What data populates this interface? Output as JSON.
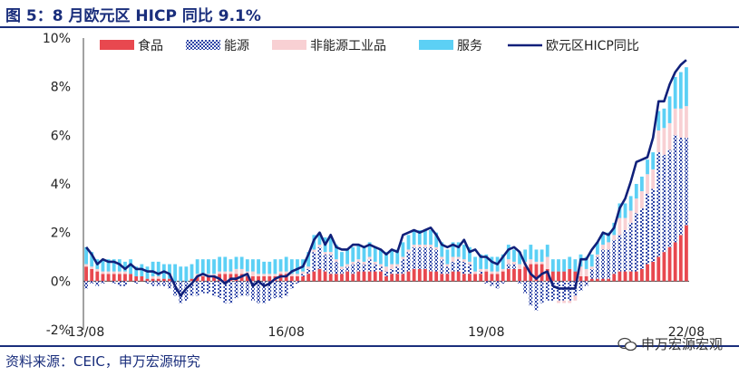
{
  "header": {
    "title": "图 5：8 月欧元区 HICP 同比 9.1%"
  },
  "footer": {
    "source": "资料来源：CEIC，申万宏源研究",
    "watermark": "申万宏源宏观"
  },
  "colors": {
    "food": "#e8484f",
    "energy": "#2d44a6",
    "nonenergy": "#f8d0d3",
    "services": "#5cd0f5",
    "hicp": "#10207a",
    "title": "#1a2e7c"
  },
  "chart_data": {
    "type": "bar",
    "stacked": true,
    "ylim": [
      -2,
      10
    ],
    "yticks": [
      "10%",
      "8%",
      "6%",
      "4%",
      "2%",
      "0%",
      "-2%"
    ],
    "ytick_values": [
      10,
      8,
      6,
      4,
      2,
      0,
      -2
    ],
    "xtick_labels": [
      "13/08",
      "16/08",
      "19/08",
      "22/08"
    ],
    "xtick_index": [
      0,
      36,
      72,
      108
    ],
    "legend": [
      "食品",
      "能源",
      "非能源工业品",
      "服务",
      "欧元区HICP同比"
    ],
    "x": [
      "13/08",
      "13/09",
      "13/10",
      "13/11",
      "13/12",
      "14/01",
      "14/02",
      "14/03",
      "14/04",
      "14/05",
      "14/06",
      "14/07",
      "14/08",
      "14/09",
      "14/10",
      "14/11",
      "14/12",
      "15/01",
      "15/02",
      "15/03",
      "15/04",
      "15/05",
      "15/06",
      "15/07",
      "15/08",
      "15/09",
      "15/10",
      "15/11",
      "15/12",
      "16/01",
      "16/02",
      "16/03",
      "16/04",
      "16/05",
      "16/06",
      "16/07",
      "16/08",
      "16/09",
      "16/10",
      "16/11",
      "16/12",
      "17/01",
      "17/02",
      "17/03",
      "17/04",
      "17/05",
      "17/06",
      "17/07",
      "17/08",
      "17/09",
      "17/10",
      "17/11",
      "17/12",
      "18/01",
      "18/02",
      "18/03",
      "18/04",
      "18/05",
      "18/06",
      "18/07",
      "18/08",
      "18/09",
      "18/10",
      "18/11",
      "18/12",
      "19/01",
      "19/02",
      "19/03",
      "19/04",
      "19/05",
      "19/06",
      "19/07",
      "19/08",
      "19/09",
      "19/10",
      "19/11",
      "19/12",
      "20/01",
      "20/02",
      "20/03",
      "20/04",
      "20/05",
      "20/06",
      "20/07",
      "20/08",
      "20/09",
      "20/10",
      "20/11",
      "20/12",
      "21/01",
      "21/02",
      "21/03",
      "21/04",
      "21/05",
      "21/06",
      "21/07",
      "21/08",
      "21/09",
      "21/10",
      "21/11",
      "21/12",
      "22/01",
      "22/02",
      "22/03",
      "22/04",
      "22/05",
      "22/06",
      "22/07",
      "22/08"
    ],
    "series": [
      {
        "name": "食品",
        "values": [
          0.6,
          0.5,
          0.4,
          0.3,
          0.3,
          0.3,
          0.3,
          0.3,
          0.3,
          0.2,
          0.2,
          0.1,
          0.1,
          0.1,
          0.1,
          0.1,
          0.0,
          0.0,
          0.0,
          0.1,
          0.2,
          0.2,
          0.2,
          0.2,
          0.3,
          0.3,
          0.3,
          0.3,
          0.3,
          0.2,
          0.2,
          0.2,
          0.2,
          0.2,
          0.2,
          0.3,
          0.3,
          0.2,
          0.2,
          0.2,
          0.3,
          0.4,
          0.5,
          0.4,
          0.3,
          0.3,
          0.3,
          0.4,
          0.3,
          0.4,
          0.4,
          0.4,
          0.4,
          0.4,
          0.2,
          0.3,
          0.3,
          0.3,
          0.4,
          0.5,
          0.5,
          0.5,
          0.4,
          0.4,
          0.3,
          0.3,
          0.4,
          0.4,
          0.3,
          0.3,
          0.3,
          0.3,
          0.4,
          0.3,
          0.3,
          0.4,
          0.5,
          0.5,
          0.5,
          0.6,
          0.7,
          0.7,
          0.7,
          0.5,
          0.4,
          0.4,
          0.4,
          0.5,
          0.4,
          0.2,
          0.2,
          0.1,
          0.1,
          0.1,
          0.1,
          0.3,
          0.4,
          0.4,
          0.4,
          0.4,
          0.5,
          0.7,
          0.8,
          1.0,
          1.2,
          1.4,
          1.6,
          1.9,
          2.3
        ]
      },
      {
        "name": "能源",
        "values": [
          -0.3,
          -0.1,
          -0.2,
          -0.1,
          0.0,
          -0.1,
          -0.2,
          -0.2,
          0.0,
          -0.1,
          0.0,
          -0.1,
          -0.2,
          -0.2,
          -0.2,
          -0.3,
          -0.6,
          -0.9,
          -0.8,
          -0.6,
          -0.6,
          -0.5,
          -0.5,
          -0.6,
          -0.7,
          -0.9,
          -0.9,
          -0.7,
          -0.6,
          -0.6,
          -0.8,
          -0.9,
          -0.9,
          -0.8,
          -0.7,
          -0.7,
          -0.6,
          -0.3,
          -0.1,
          0.1,
          0.2,
          0.8,
          0.9,
          0.7,
          0.8,
          0.5,
          0.2,
          0.2,
          0.4,
          0.4,
          0.3,
          0.5,
          0.3,
          0.2,
          0.2,
          0.2,
          0.3,
          0.6,
          0.8,
          0.9,
          0.9,
          0.9,
          1.0,
          0.9,
          0.6,
          0.3,
          0.4,
          0.5,
          0.5,
          0.4,
          0.0,
          0.1,
          -0.1,
          -0.2,
          -0.3,
          -0.1,
          0.2,
          0.2,
          -0.1,
          -0.5,
          -1.0,
          -1.2,
          -0.9,
          -0.8,
          -0.8,
          -0.8,
          -0.8,
          -0.8,
          -0.6,
          -0.4,
          -0.2,
          0.4,
          0.9,
          1.2,
          1.2,
          1.4,
          1.5,
          1.7,
          2.0,
          2.4,
          2.5,
          2.9,
          3.0,
          4.3,
          4.0,
          4.0,
          4.4,
          4.0,
          3.6
        ]
      },
      {
        "name": "非能源工业品",
        "values": [
          0.1,
          0.1,
          0.1,
          0.1,
          0.1,
          0.1,
          0.1,
          0.1,
          0.0,
          0.0,
          0.0,
          0.0,
          0.1,
          0.1,
          0.0,
          0.0,
          0.0,
          0.0,
          0.0,
          0.0,
          0.1,
          0.1,
          0.1,
          0.1,
          0.1,
          0.1,
          0.1,
          0.2,
          0.2,
          0.2,
          0.2,
          0.1,
          0.1,
          0.1,
          0.1,
          0.1,
          0.1,
          0.1,
          0.1,
          0.1,
          0.1,
          0.1,
          0.1,
          0.1,
          0.1,
          0.1,
          0.1,
          0.1,
          0.1,
          0.1,
          0.1,
          0.1,
          0.1,
          0.1,
          0.2,
          0.2,
          0.1,
          0.1,
          0.1,
          0.1,
          0.1,
          0.1,
          0.1,
          0.1,
          0.1,
          0.1,
          0.2,
          0.1,
          0.1,
          0.1,
          0.1,
          0.1,
          0.1,
          0.1,
          0.1,
          0.1,
          0.2,
          0.1,
          0.2,
          0.2,
          0.2,
          0.1,
          0.1,
          0.5,
          0.0,
          -0.1,
          -0.1,
          -0.1,
          -0.2,
          0.4,
          0.3,
          0.1,
          0.1,
          0.2,
          0.3,
          0.2,
          0.7,
          0.5,
          0.5,
          0.6,
          0.7,
          0.8,
          0.8,
          0.9,
          1.1,
          1.1,
          1.1,
          1.2,
          1.3
        ]
      },
      {
        "name": "服务",
        "values": [
          0.7,
          0.6,
          0.4,
          0.5,
          0.5,
          0.5,
          0.5,
          0.4,
          0.6,
          0.4,
          0.5,
          0.5,
          0.6,
          0.6,
          0.6,
          0.6,
          0.7,
          0.6,
          0.6,
          0.6,
          0.6,
          0.6,
          0.6,
          0.6,
          0.6,
          0.6,
          0.5,
          0.5,
          0.5,
          0.5,
          0.5,
          0.6,
          0.5,
          0.5,
          0.6,
          0.5,
          0.6,
          0.6,
          0.6,
          0.5,
          0.6,
          0.6,
          0.5,
          0.6,
          0.6,
          0.6,
          0.6,
          0.6,
          0.6,
          0.6,
          0.6,
          0.6,
          0.6,
          0.6,
          0.6,
          0.6,
          0.6,
          0.6,
          0.6,
          0.6,
          0.6,
          0.6,
          0.6,
          0.6,
          0.6,
          0.6,
          0.6,
          0.6,
          0.6,
          0.6,
          0.6,
          0.6,
          0.6,
          0.6,
          0.6,
          0.6,
          0.6,
          0.5,
          0.5,
          0.5,
          0.6,
          0.5,
          0.5,
          0.5,
          0.5,
          0.5,
          0.5,
          0.5,
          0.5,
          0.5,
          0.5,
          0.5,
          0.5,
          0.5,
          0.4,
          0.5,
          0.6,
          0.6,
          0.6,
          0.6,
          0.6,
          0.6,
          0.7,
          0.8,
          0.8,
          1.1,
          1.3,
          1.5,
          1.6
        ]
      },
      {
        "name": "欧元区HICP同比",
        "type": "line",
        "values": [
          1.4,
          1.1,
          0.7,
          0.9,
          0.8,
          0.8,
          0.7,
          0.5,
          0.7,
          0.5,
          0.5,
          0.4,
          0.4,
          0.3,
          0.4,
          0.3,
          -0.2,
          -0.6,
          -0.3,
          -0.1,
          0.2,
          0.3,
          0.2,
          0.2,
          0.1,
          -0.1,
          0.1,
          0.1,
          0.2,
          0.3,
          -0.2,
          0.0,
          -0.2,
          -0.1,
          0.1,
          0.2,
          0.2,
          0.4,
          0.5,
          0.6,
          1.1,
          1.7,
          2.0,
          1.5,
          1.9,
          1.4,
          1.3,
          1.3,
          1.5,
          1.5,
          1.4,
          1.5,
          1.4,
          1.3,
          1.1,
          1.3,
          1.2,
          1.9,
          2.0,
          2.1,
          2.0,
          2.1,
          2.2,
          1.9,
          1.5,
          1.4,
          1.5,
          1.4,
          1.7,
          1.2,
          1.3,
          1.0,
          1.0,
          0.8,
          0.7,
          1.0,
          1.3,
          1.4,
          1.2,
          0.7,
          0.3,
          0.1,
          0.3,
          0.4,
          -0.2,
          -0.3,
          -0.3,
          -0.3,
          -0.3,
          0.9,
          0.9,
          1.3,
          1.6,
          2.0,
          1.9,
          2.2,
          3.0,
          3.4,
          4.1,
          4.9,
          5.0,
          5.1,
          5.9,
          7.4,
          7.4,
          8.1,
          8.6,
          8.9,
          9.1
        ]
      }
    ]
  }
}
